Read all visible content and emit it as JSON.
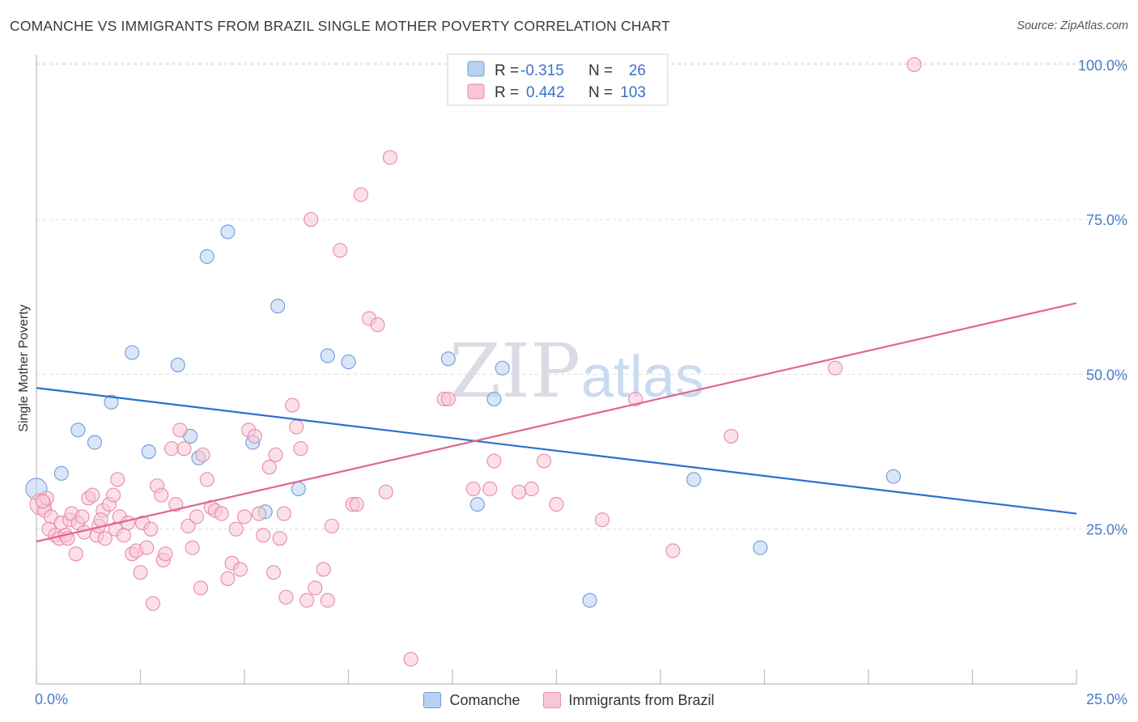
{
  "title": "COMANCHE VS IMMIGRANTS FROM BRAZIL SINGLE MOTHER POVERTY CORRELATION CHART",
  "source": "Source: ZipAtlas.com",
  "watermark": {
    "zip": "ZIP",
    "atlas": "atlas"
  },
  "colors": {
    "blue_fill": "#b8d1f3",
    "blue_stroke": "#6e9bd8",
    "blue_line": "#2b6fcf",
    "pink_fill": "#f8c6d6",
    "pink_stroke": "#e88aa8",
    "pink_line": "#e0668f",
    "tick_label": "#4a7cc9",
    "grid": "#dcdcdc"
  },
  "stats": {
    "r_label": "R =",
    "n_label": "N =",
    "rows": [
      {
        "series": "Comanche",
        "r": "-0.315",
        "n": "26"
      },
      {
        "series": "Immigrants from Brazil",
        "r": "0.442",
        "n": "103"
      }
    ]
  },
  "chart_data": {
    "type": "scatter",
    "title": "COMANCHE VS IMMIGRANTS FROM BRAZIL SINGLE MOTHER POVERTY CORRELATION CHART",
    "xlabel": "",
    "ylabel": "Single Mother Poverty",
    "xlim": [
      0,
      25
    ],
    "ylim": [
      0,
      102
    ],
    "x_tick_labels": {
      "left": "0.0%",
      "right": "25.0%"
    },
    "y_ticks": [
      {
        "value": 25,
        "label": "25.0%"
      },
      {
        "value": 50,
        "label": "50.0%"
      },
      {
        "value": 75,
        "label": "75.0%"
      },
      {
        "value": 100,
        "label": "100.0%"
      }
    ],
    "grid": "horizontal dashed",
    "legend_position": "bottom-center",
    "series": [
      {
        "name": "Comanche",
        "color": "#b8d1f3",
        "trend": {
          "x": [
            0,
            25
          ],
          "y": [
            47.8,
            27.5
          ]
        },
        "points": [
          [
            0.0,
            31.5
          ],
          [
            0.6,
            34.0
          ],
          [
            1.0,
            41.0
          ],
          [
            1.4,
            39.0
          ],
          [
            1.8,
            45.5
          ],
          [
            2.3,
            53.5
          ],
          [
            2.7,
            37.5
          ],
          [
            3.4,
            51.5
          ],
          [
            3.7,
            40.0
          ],
          [
            3.9,
            36.5
          ],
          [
            4.1,
            69.0
          ],
          [
            4.6,
            73.0
          ],
          [
            5.2,
            39.0
          ],
          [
            5.5,
            27.8
          ],
          [
            5.8,
            61.0
          ],
          [
            6.3,
            31.5
          ],
          [
            7.0,
            53.0
          ],
          [
            7.5,
            52.0
          ],
          [
            9.9,
            52.5
          ],
          [
            10.6,
            29.0
          ],
          [
            11.0,
            46.0
          ],
          [
            11.2,
            51.0
          ],
          [
            13.3,
            13.5
          ],
          [
            15.8,
            33.0
          ],
          [
            17.4,
            22.0
          ],
          [
            20.6,
            33.5
          ]
        ]
      },
      {
        "name": "Immigrants from Brazil",
        "color": "#f8c6d6",
        "trend": {
          "x": [
            0,
            25
          ],
          "y": [
            23.0,
            61.5
          ]
        },
        "points": [
          [
            0.1,
            29.0
          ],
          [
            0.2,
            28.0
          ],
          [
            0.25,
            30.0
          ],
          [
            0.35,
            27.0
          ],
          [
            0.3,
            25.0
          ],
          [
            0.45,
            24.0
          ],
          [
            0.55,
            23.5
          ],
          [
            0.6,
            26.0
          ],
          [
            0.7,
            24.0
          ],
          [
            0.8,
            26.5
          ],
          [
            0.85,
            27.5
          ],
          [
            0.95,
            21.0
          ],
          [
            1.0,
            26.0
          ],
          [
            1.1,
            27.0
          ],
          [
            1.15,
            24.5
          ],
          [
            1.25,
            30.0
          ],
          [
            1.35,
            30.5
          ],
          [
            1.45,
            24.0
          ],
          [
            1.5,
            25.5
          ],
          [
            1.6,
            28.0
          ],
          [
            1.65,
            23.5
          ],
          [
            1.75,
            29.0
          ],
          [
            1.85,
            30.5
          ],
          [
            1.9,
            25.0
          ],
          [
            1.95,
            33.0
          ],
          [
            2.0,
            27.0
          ],
          [
            2.1,
            24.0
          ],
          [
            2.2,
            26.0
          ],
          [
            2.3,
            21.0
          ],
          [
            2.4,
            21.5
          ],
          [
            2.5,
            18.0
          ],
          [
            2.55,
            26.0
          ],
          [
            2.65,
            22.0
          ],
          [
            2.75,
            25.0
          ],
          [
            2.8,
            13.0
          ],
          [
            2.9,
            32.0
          ],
          [
            3.0,
            30.5
          ],
          [
            3.05,
            20.0
          ],
          [
            3.1,
            21.0
          ],
          [
            3.25,
            38.0
          ],
          [
            3.35,
            29.0
          ],
          [
            3.45,
            41.0
          ],
          [
            3.55,
            38.0
          ],
          [
            3.65,
            25.5
          ],
          [
            3.75,
            22.0
          ],
          [
            3.85,
            27.0
          ],
          [
            3.95,
            15.5
          ],
          [
            4.0,
            37.0
          ],
          [
            4.1,
            33.0
          ],
          [
            4.2,
            28.5
          ],
          [
            4.3,
            28.0
          ],
          [
            4.45,
            27.5
          ],
          [
            4.6,
            17.0
          ],
          [
            4.7,
            19.5
          ],
          [
            4.8,
            25.0
          ],
          [
            4.9,
            18.5
          ],
          [
            5.0,
            27.0
          ],
          [
            5.1,
            41.0
          ],
          [
            5.25,
            40.0
          ],
          [
            5.35,
            27.5
          ],
          [
            5.45,
            24.0
          ],
          [
            5.6,
            35.0
          ],
          [
            5.7,
            18.0
          ],
          [
            5.75,
            37.0
          ],
          [
            5.85,
            23.5
          ],
          [
            5.95,
            27.5
          ],
          [
            6.0,
            14.0
          ],
          [
            6.15,
            45.0
          ],
          [
            6.25,
            41.5
          ],
          [
            6.35,
            38.0
          ],
          [
            6.5,
            13.5
          ],
          [
            6.6,
            75.0
          ],
          [
            6.7,
            15.5
          ],
          [
            6.9,
            18.5
          ],
          [
            7.0,
            13.5
          ],
          [
            7.1,
            25.5
          ],
          [
            7.3,
            70.0
          ],
          [
            7.6,
            29.0
          ],
          [
            7.7,
            29.0
          ],
          [
            7.8,
            79.0
          ],
          [
            8.0,
            59.0
          ],
          [
            8.2,
            58.0
          ],
          [
            8.4,
            31.0
          ],
          [
            8.5,
            85.0
          ],
          [
            9.0,
            4.0
          ],
          [
            9.8,
            46.0
          ],
          [
            9.9,
            46.0
          ],
          [
            10.5,
            31.5
          ],
          [
            10.9,
            31.5
          ],
          [
            11.0,
            36.0
          ],
          [
            11.6,
            31.0
          ],
          [
            11.9,
            31.5
          ],
          [
            12.2,
            36.0
          ],
          [
            12.5,
            29.0
          ],
          [
            13.6,
            26.5
          ],
          [
            14.4,
            46.0
          ],
          [
            15.3,
            21.5
          ],
          [
            16.7,
            40.0
          ],
          [
            19.2,
            51.0
          ],
          [
            21.1,
            100.0
          ],
          [
            0.15,
            29.5
          ],
          [
            0.75,
            23.5
          ],
          [
            1.55,
            26.5
          ]
        ]
      }
    ]
  },
  "legend": {
    "items": [
      {
        "label": "Comanche",
        "color": "#b8d1f3",
        "border": "#6e9bd8"
      },
      {
        "label": "Immigrants from Brazil",
        "color": "#f8c6d6",
        "border": "#e88aa8"
      }
    ]
  }
}
